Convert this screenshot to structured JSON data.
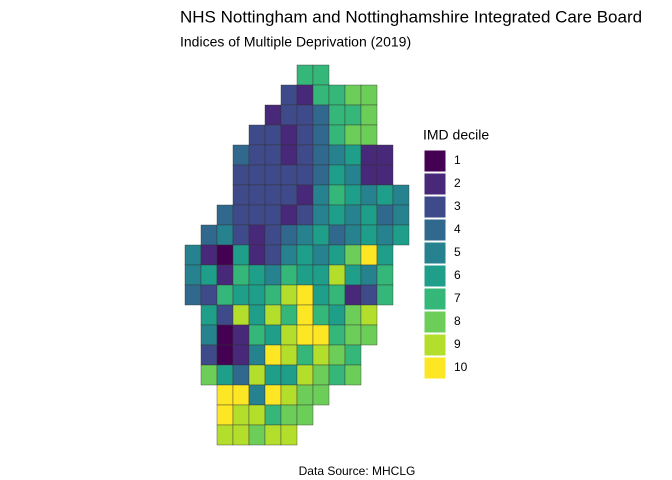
{
  "title": "NHS Nottingham and Nottinghamshire Integrated Care Board",
  "subtitle": "Indices of Multiple Deprivation (2019)",
  "caption": "Data Source: MHCLG",
  "legend": {
    "title": "IMD decile",
    "items": [
      {
        "label": 1,
        "color": "#440154"
      },
      {
        "label": 2,
        "color": "#482878"
      },
      {
        "label": 3,
        "color": "#3e4a89"
      },
      {
        "label": 4,
        "color": "#31688e"
      },
      {
        "label": 5,
        "color": "#26828e"
      },
      {
        "label": 6,
        "color": "#1f9e89"
      },
      {
        "label": 7,
        "color": "#35b779"
      },
      {
        "label": 8,
        "color": "#6dcd59"
      },
      {
        "label": 9,
        "color": "#b4de2c"
      },
      {
        "label": 10,
        "color": "#fde725"
      }
    ]
  },
  "map": {
    "rows": [
      [
        null,
        null,
        null,
        null,
        null,
        null,
        null,
        7,
        7,
        null,
        null,
        null,
        null,
        null
      ],
      [
        null,
        null,
        null,
        null,
        null,
        null,
        3,
        2,
        7,
        7,
        8,
        8,
        null,
        null
      ],
      [
        null,
        null,
        null,
        null,
        null,
        2,
        3,
        3,
        4,
        7,
        7,
        8,
        null,
        null
      ],
      [
        null,
        null,
        null,
        null,
        3,
        3,
        2,
        3,
        4,
        7,
        8,
        8,
        null,
        null
      ],
      [
        null,
        null,
        null,
        4,
        3,
        3,
        2,
        3,
        4,
        5,
        6,
        2,
        2,
        null
      ],
      [
        null,
        null,
        null,
        3,
        3,
        3,
        3,
        3,
        4,
        6,
        5,
        2,
        2,
        null
      ],
      [
        null,
        null,
        null,
        3,
        3,
        3,
        3,
        2,
        5,
        7,
        6,
        5,
        6,
        5
      ],
      [
        null,
        null,
        4,
        3,
        3,
        3,
        2,
        3,
        5,
        6,
        5,
        6,
        4,
        5
      ],
      [
        null,
        4,
        5,
        3,
        2,
        3,
        4,
        5,
        6,
        4,
        5,
        6,
        5,
        6
      ],
      [
        5,
        2,
        1,
        6,
        2,
        3,
        5,
        6,
        5,
        6,
        8,
        10,
        6,
        null
      ],
      [
        5,
        6,
        2,
        7,
        6,
        5,
        7,
        6,
        6,
        9,
        6,
        5,
        7,
        null
      ],
      [
        4,
        3,
        7,
        6,
        6,
        7,
        9,
        10,
        6,
        7,
        2,
        3,
        7,
        null
      ],
      [
        null,
        6,
        3,
        9,
        6,
        9,
        7,
        10,
        7,
        6,
        8,
        9,
        null,
        null
      ],
      [
        null,
        5,
        1,
        2,
        7,
        6,
        9,
        10,
        10,
        7,
        8,
        8,
        null,
        null
      ],
      [
        null,
        3,
        1,
        2,
        5,
        10,
        9,
        7,
        9,
        8,
        7,
        null,
        null,
        null
      ],
      [
        null,
        8,
        6,
        4,
        9,
        6,
        6,
        9,
        8,
        7,
        8,
        null,
        null,
        null
      ],
      [
        null,
        null,
        10,
        10,
        5,
        10,
        9,
        8,
        8,
        null,
        null,
        null,
        null,
        null
      ],
      [
        null,
        null,
        10,
        9,
        9,
        7,
        8,
        8,
        null,
        null,
        null,
        null,
        null,
        null
      ],
      [
        null,
        null,
        9,
        9,
        8,
        9,
        9,
        null,
        null,
        null,
        null,
        null,
        null,
        null
      ]
    ]
  }
}
